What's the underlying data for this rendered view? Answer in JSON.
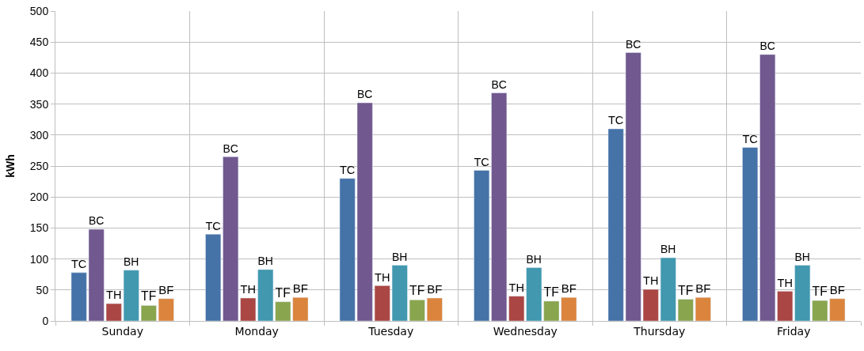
{
  "chart_data": {
    "type": "bar",
    "ylabel": "kWh",
    "categories": [
      "Sunday",
      "Monday",
      "Tuesday",
      "Wednesday",
      "Thursday",
      "Friday"
    ],
    "series": [
      {
        "name": "TC",
        "color": "#4572a7",
        "values": [
          78,
          140,
          230,
          243,
          310,
          280
        ]
      },
      {
        "name": "BC",
        "color": "#71588f",
        "values": [
          148,
          265,
          352,
          368,
          433,
          430
        ]
      },
      {
        "name": "TH",
        "color": "#aa4643",
        "values": [
          28,
          37,
          57,
          40,
          51,
          48
        ]
      },
      {
        "name": "BH",
        "color": "#4198af",
        "values": [
          82,
          83,
          90,
          86,
          102,
          90
        ]
      },
      {
        "name": "TF",
        "color": "#89a54e",
        "values": [
          25,
          31,
          34,
          32,
          35,
          33
        ]
      },
      {
        "name": "BF",
        "color": "#db843d",
        "values": [
          36,
          38,
          37,
          38,
          38,
          36
        ]
      }
    ],
    "ylim": [
      0,
      500
    ],
    "yticks": [
      0,
      50,
      100,
      150,
      200,
      250,
      300,
      350,
      400,
      450,
      500
    ],
    "grid": true,
    "legend": false
  }
}
